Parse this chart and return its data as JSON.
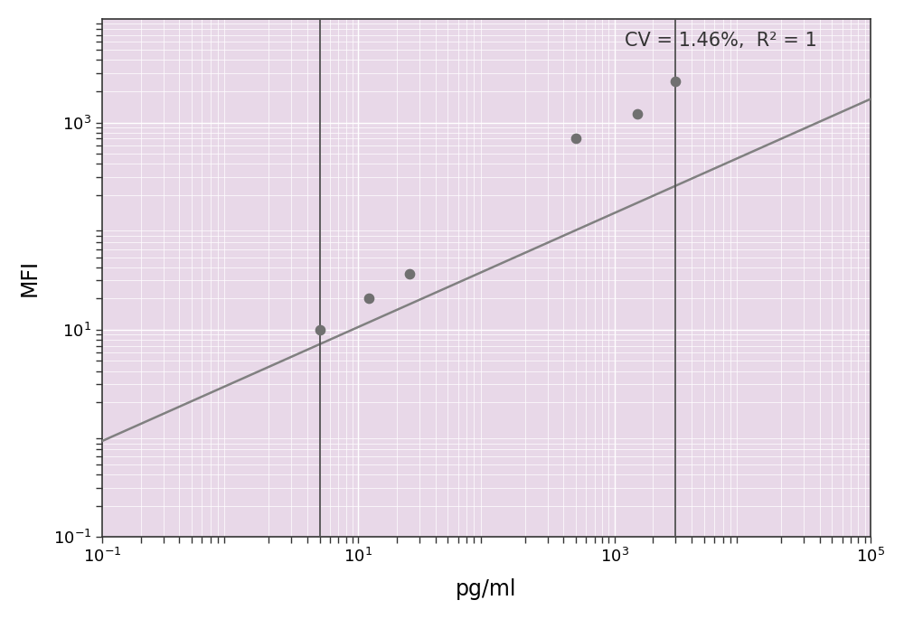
{
  "title_text": "CV = 1.46%,  R² = 1",
  "xlabel": "pg/ml",
  "ylabel": "MFI",
  "background_color": "#e8d8e8",
  "figure_color": "#ffffff",
  "curve_color": "#808080",
  "point_color": "#707070",
  "vline_color": "#505050",
  "vline_x": [
    5.0,
    3000.0
  ],
  "data_x": [
    5.0,
    12.0,
    25.0,
    500.0,
    1500.0,
    3000.0
  ],
  "data_y": [
    10.0,
    20.0,
    35.0,
    700.0,
    1200.0,
    2500.0
  ],
  "xlim": [
    0.1,
    100000
  ],
  "ylim": [
    0.1,
    10000
  ],
  "curve_x_start": 0.1,
  "curve_x_end": 100000,
  "grid_color": "#ffffff",
  "xticks": [
    0.1,
    10,
    1000,
    100000
  ],
  "xtick_labels": [
    "$10^{-1}$",
    "$10^{1}$",
    "$10^{3}$",
    "$10^{5}$"
  ],
  "yticks": [
    0.1,
    10,
    1000
  ],
  "ytick_labels": [
    "$10^{-1}$",
    "$10^{1}$",
    "$10^{3}$"
  ]
}
